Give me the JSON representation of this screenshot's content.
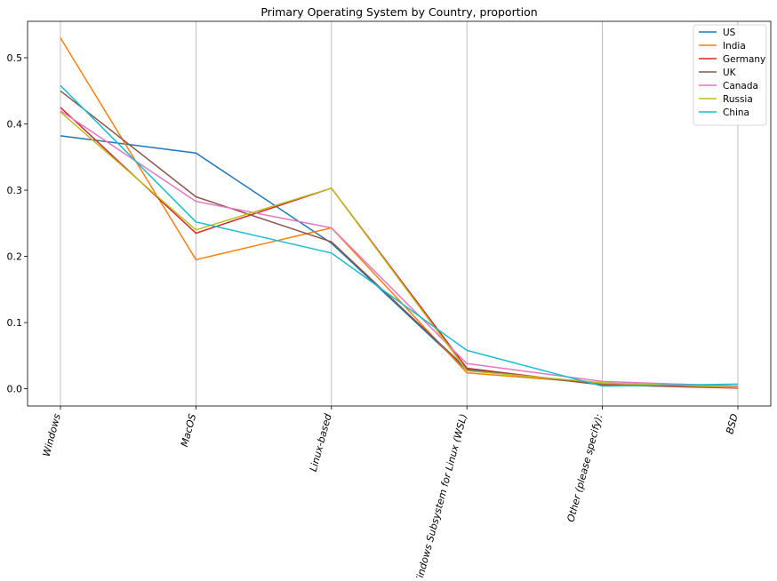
{
  "chart_data": {
    "type": "line",
    "title": "Primary Operating System by Country, proportion",
    "xlabel": "",
    "ylabel": "",
    "categories": [
      "Windows",
      "MacOS",
      "Linux-based",
      "Windows Subsystem for Linux (WSL)",
      "Other (please specify):",
      "BSD"
    ],
    "ylim": [
      -0.026,
      0.555
    ],
    "yticks": [
      0.0,
      0.1,
      0.2,
      0.3,
      0.4,
      0.5
    ],
    "ytick_labels": [
      "0.0",
      "0.1",
      "0.2",
      "0.3",
      "0.4",
      "0.5"
    ],
    "grid": "vertical",
    "legend_position": "upper right",
    "series": [
      {
        "name": "US",
        "color": "#1f77b4",
        "values": [
          0.382,
          0.356,
          0.22,
          0.028,
          0.007,
          0.002
        ]
      },
      {
        "name": "India",
        "color": "#ff7f0e",
        "values": [
          0.53,
          0.195,
          0.243,
          0.024,
          0.008,
          0.003
        ]
      },
      {
        "name": "Germany",
        "color": "#d62728",
        "values": [
          0.425,
          0.235,
          0.303,
          0.031,
          0.006,
          0.001
        ]
      },
      {
        "name": "UK",
        "color": "#8c564b",
        "values": [
          0.45,
          0.29,
          0.222,
          0.03,
          0.006,
          0.002
        ]
      },
      {
        "name": "Canada",
        "color": "#e377c2",
        "values": [
          0.42,
          0.283,
          0.243,
          0.038,
          0.011,
          0.004
        ]
      },
      {
        "name": "Russia",
        "color": "#bcbd22",
        "values": [
          0.418,
          0.24,
          0.303,
          0.027,
          0.009,
          0.002
        ]
      },
      {
        "name": "China",
        "color": "#17becf",
        "values": [
          0.458,
          0.252,
          0.205,
          0.058,
          0.004,
          0.007
        ]
      }
    ]
  }
}
